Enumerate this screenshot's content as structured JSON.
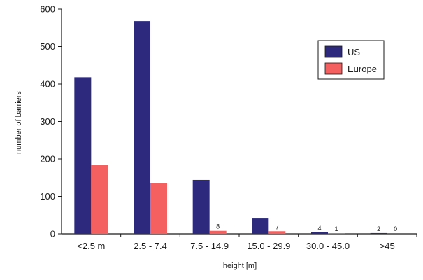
{
  "chart_data": {
    "type": "bar",
    "title": "",
    "xlabel": "height [m]",
    "ylabel": "number of barriers",
    "categories": [
      "<2.5 m",
      "2.5 - 7.4",
      "7.5 - 14.9",
      "15.0 - 29.9",
      "30.0 - 45.0",
      ">45"
    ],
    "series": [
      {
        "name": "US",
        "color": "#2d2a7e",
        "values": [
          418,
          568,
          144,
          41,
          4,
          2
        ]
      },
      {
        "name": "Europe",
        "color": "#f4605f",
        "values": [
          185,
          136,
          8,
          7,
          1,
          0
        ]
      }
    ],
    "data_labels": [
      {
        "category": "7.5 - 14.9",
        "series": "Europe",
        "text": "8"
      },
      {
        "category": "15.0 - 29.9",
        "series": "Europe",
        "text": "7"
      },
      {
        "category": "30.0 - 45.0",
        "series": "US",
        "text": "4"
      },
      {
        "category": "30.0 - 45.0",
        "series": "Europe",
        "text": "1"
      },
      {
        "category": ">45",
        "series": "US",
        "text": "2"
      },
      {
        "category": ">45",
        "series": "Europe",
        "text": "0"
      }
    ],
    "ylim": [
      0,
      600
    ],
    "yticks": [
      0,
      100,
      200,
      300,
      400,
      500,
      600
    ],
    "grid": false,
    "legend": "top-right"
  }
}
